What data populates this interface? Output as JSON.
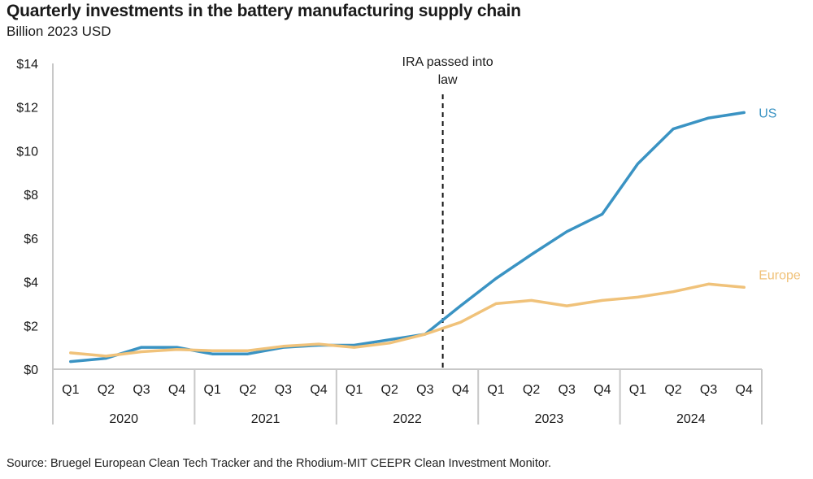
{
  "title": "Quarterly investments in the battery manufacturing supply chain",
  "subtitle": "Billion 2023 USD",
  "source": "Source: Bruegel European Clean Tech Tracker and the Rhodium-MIT CEEPR Clean Investment Monitor.",
  "chart_data": {
    "type": "line",
    "title": "Quarterly investments in the battery manufacturing supply chain",
    "ylabel": "Billion 2023 USD",
    "ylim": [
      0,
      14
    ],
    "yticks": [
      "$0",
      "$2",
      "$4",
      "$6",
      "$8",
      "$10",
      "$12",
      "$14"
    ],
    "quarters": [
      "Q1",
      "Q2",
      "Q3",
      "Q4",
      "Q1",
      "Q2",
      "Q3",
      "Q4",
      "Q1",
      "Q2",
      "Q3",
      "Q4",
      "Q1",
      "Q2",
      "Q3",
      "Q4",
      "Q1",
      "Q2",
      "Q3",
      "Q4"
    ],
    "years": [
      "2020",
      "2021",
      "2022",
      "2023",
      "2024"
    ],
    "series": [
      {
        "name": "US",
        "color": "#3a93c3",
        "values": [
          0.35,
          0.5,
          1.0,
          1.0,
          0.7,
          0.7,
          1.0,
          1.1,
          1.1,
          1.35,
          1.6,
          2.9,
          4.15,
          5.25,
          6.3,
          7.1,
          9.4,
          11.0,
          11.5,
          11.75
        ]
      },
      {
        "name": "Europe",
        "color": "#f0c27a",
        "values": [
          0.75,
          0.6,
          0.8,
          0.9,
          0.85,
          0.85,
          1.05,
          1.15,
          1.0,
          1.2,
          1.6,
          2.15,
          3.0,
          3.15,
          2.9,
          3.15,
          3.3,
          3.55,
          3.9,
          3.75
        ]
      }
    ],
    "annotation": {
      "text_line1": "IRA passed into",
      "text_line2": "law",
      "position": "between 2022 Q3 and 2022 Q4"
    }
  }
}
